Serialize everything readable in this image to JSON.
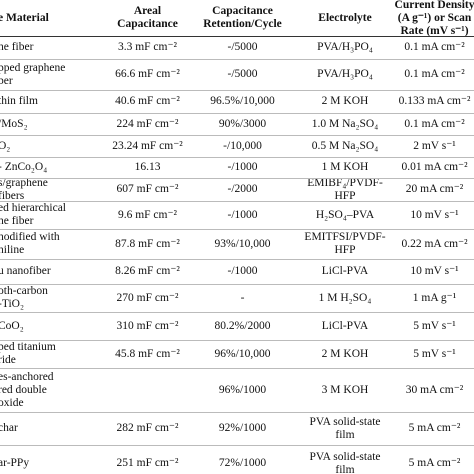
{
  "table": {
    "header": [
      "e Material",
      [
        "Areal",
        "Capacitance"
      ],
      [
        "Capacitance",
        "Retention/Cycle"
      ],
      "Electrolyte",
      [
        "Current Density",
        "(A g⁻¹) or Scan",
        "Rate (mV s⁻¹)"
      ]
    ],
    "rows": [
      [
        "ne fiber",
        "3.3 mF cm⁻²",
        "-/5000",
        "PVA/H₃PO₄",
        "0.1 mA cm⁻²"
      ],
      [
        [
          "pped graphene",
          "ber"
        ],
        "66.6 mF cm⁻²",
        "-/5000",
        "PVA/H₃PO₄",
        "0.1 mA cm⁻²"
      ],
      [
        " thin film",
        "40.6 mF cm⁻²",
        "96.5%/10,000",
        "2 M KOH",
        "0.133 mA cm⁻²"
      ],
      [
        "/MoS₂",
        "224 mF cm⁻²",
        "90%/3000",
        "1.0 M Na₂SO₄",
        "0.1 mA cm⁻²"
      ],
      [
        "O₂",
        "23.24 mF cm⁻²",
        "-/10,000",
        "0.5 M Na₂SO₄",
        "2 mV s⁻¹"
      ],
      [
        "- ZnCo₂O₄",
        "16.13",
        "-/1000",
        "1 M KOH",
        "0.01 mA cm⁻²"
      ],
      [
        [
          "s/graphene",
          "fibers"
        ],
        "607 mF cm⁻²",
        "-/2000",
        [
          "EMIBF₄/PVDF-",
          "HFP"
        ],
        "20 mA cm⁻²"
      ],
      [
        [
          "ed hierarchical",
          "ne fiber"
        ],
        "9.6 mF cm⁻²",
        "-/1000",
        "H₂SO₄–PVA",
        "10 mV s⁻¹"
      ],
      [
        [
          "nodified with",
          "niline"
        ],
        "87.8 mF cm⁻²",
        "93%/10,000",
        [
          "EMITFSI/PVDF-",
          "HFP"
        ],
        "0.22 mA cm⁻²"
      ],
      [
        "u nanofiber",
        "8.26 mF cm⁻²",
        "-/1000",
        "LiCl-PVA",
        "10 mV s⁻¹"
      ],
      [
        [
          "oth-carbon",
          "-TiO₂"
        ],
        "270 mF cm⁻²",
        "-",
        "1 M H₂SO₄",
        "1 mA g⁻¹"
      ],
      [
        "CoO₂",
        "310 mF cm⁻²",
        "80.2%/2000",
        "LiCl-PVA",
        "5 mV s⁻¹"
      ],
      [
        [
          "ped titanium",
          "ride"
        ],
        "45.8 mF cm⁻²",
        "96%/10,000",
        "2 M KOH",
        "5 mV s⁻¹"
      ],
      [
        [
          "es-anchored",
          "red double",
          "oxide"
        ],
        null,
        "96%/1000",
        "3 M KOH",
        "30 mA cm⁻²"
      ],
      [
        "char",
        "282 mF cm⁻²",
        "92%/1000",
        [
          "PVA solid-state",
          "film"
        ],
        "5 mA cm⁻²"
      ],
      [
        "ar-PPy",
        "251 mF cm⁻²",
        "72%/1000",
        [
          "PVA solid-state",
          "film"
        ],
        "5 mA cm⁻²"
      ]
    ]
  }
}
